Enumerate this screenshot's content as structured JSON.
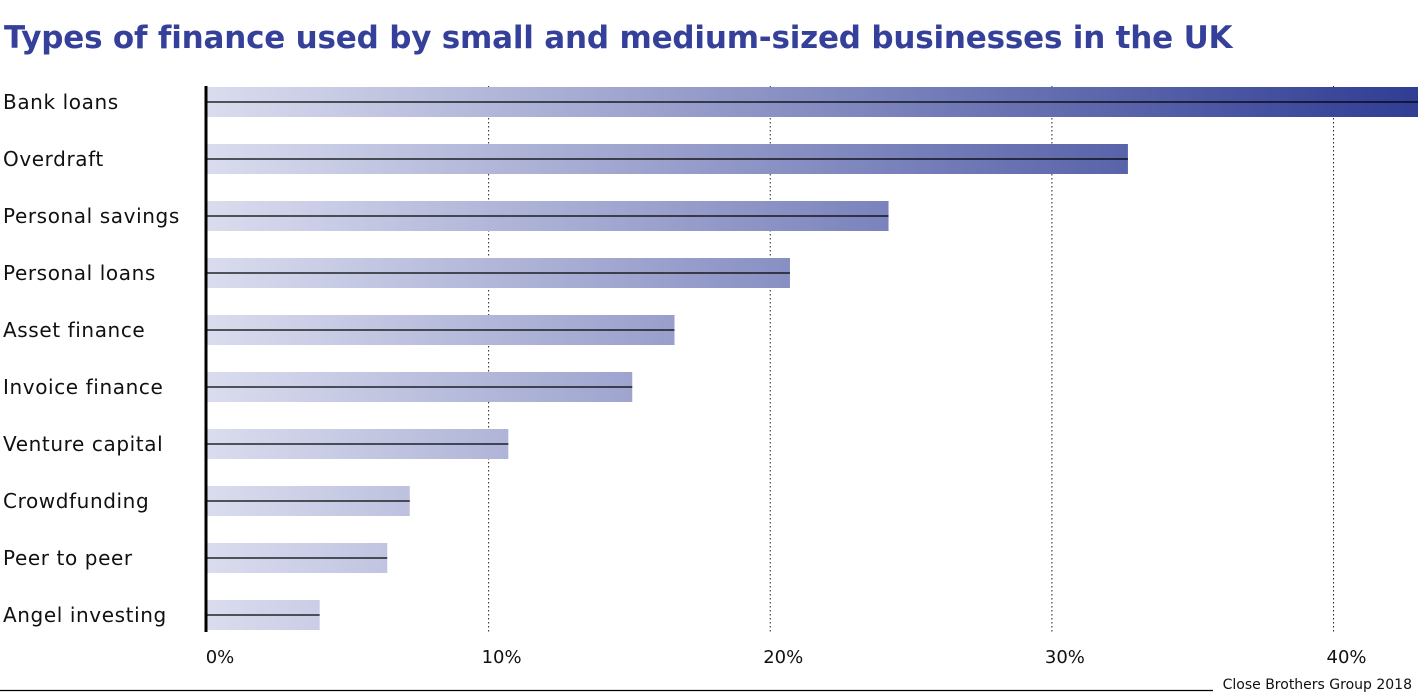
{
  "chart_data": {
    "type": "bar",
    "orientation": "horizontal",
    "title": "Types of finance used by small and medium-sized businesses in the UK",
    "categories": [
      "Bank loans",
      "Overdraft",
      "Personal savings",
      "Personal loans",
      "Asset finance",
      "Invoice finance",
      "Venture capital",
      "Crowdfunding",
      "Peer to peer",
      "Angel investing"
    ],
    "values": [
      43,
      32.7,
      24.2,
      20.7,
      16.6,
      15.1,
      10.7,
      7.2,
      6.4,
      4.0
    ],
    "unit": "%",
    "xlabel": "",
    "ylabel": "",
    "xlim": [
      0,
      43
    ],
    "xticks": [
      0,
      10,
      20,
      30,
      40
    ],
    "xtick_labels": [
      "0%",
      "10%",
      "20%",
      "30%",
      "40%"
    ],
    "grid": "vertical dotted",
    "bar_color_light": "#dadcee",
    "bar_color_dark": "#2f3d94",
    "title_color": "#34409a"
  },
  "source": "Close Brothers Group 2018"
}
